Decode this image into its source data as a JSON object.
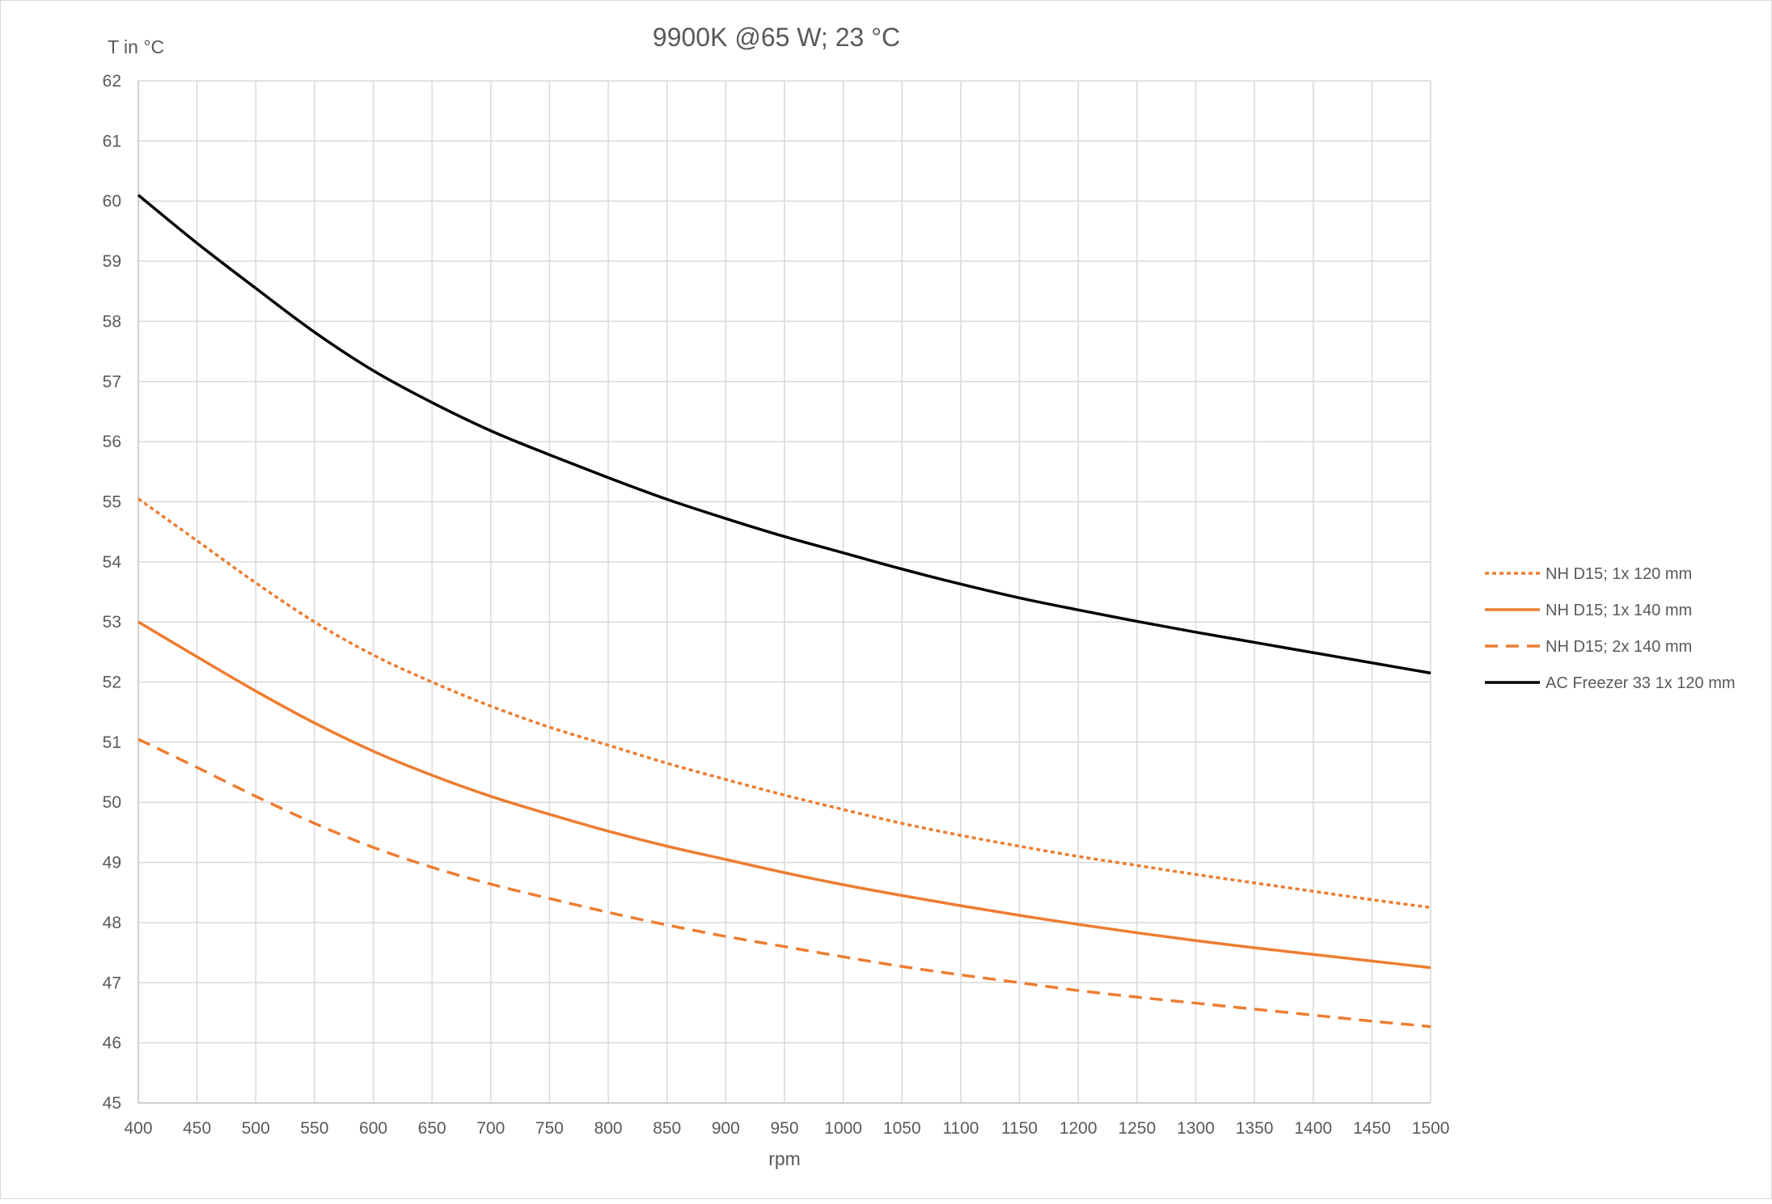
{
  "chart_data": {
    "type": "line",
    "title": "9900K @65 W; 23 °C",
    "xlabel": "rpm",
    "ylabel": "T in °C",
    "xlim": [
      400,
      1500
    ],
    "ylim": [
      45,
      62
    ],
    "x_ticks": [
      400,
      450,
      500,
      550,
      600,
      650,
      700,
      750,
      800,
      850,
      900,
      950,
      1000,
      1050,
      1100,
      1150,
      1200,
      1250,
      1300,
      1350,
      1400,
      1450,
      1500
    ],
    "y_ticks": [
      45,
      46,
      47,
      48,
      49,
      50,
      51,
      52,
      53,
      54,
      55,
      56,
      57,
      58,
      59,
      60,
      61,
      62
    ],
    "grid": true,
    "legend_position": "right",
    "x": [
      400,
      450,
      500,
      550,
      600,
      650,
      700,
      750,
      800,
      850,
      900,
      950,
      1000,
      1050,
      1100,
      1150,
      1200,
      1250,
      1300,
      1350,
      1400,
      1450,
      1500
    ],
    "series": [
      {
        "name": "NH D15; 1x 120 mm",
        "color": "#ED7D31",
        "dash": "dotted",
        "values": [
          55.05,
          54.35,
          53.65,
          53.0,
          52.45,
          52.0,
          51.6,
          51.25,
          50.95,
          50.65,
          50.38,
          50.12,
          49.88,
          49.65,
          49.45,
          49.27,
          49.1,
          48.95,
          48.8,
          48.66,
          48.52,
          48.38,
          48.25
        ]
      },
      {
        "name": "NH D15; 1x 140 mm",
        "color": "#ED7D31",
        "dash": "solid",
        "values": [
          53.0,
          52.42,
          51.85,
          51.32,
          50.85,
          50.45,
          50.1,
          49.8,
          49.52,
          49.27,
          49.05,
          48.83,
          48.63,
          48.45,
          48.28,
          48.12,
          47.97,
          47.83,
          47.7,
          47.58,
          47.47,
          47.36,
          47.25
        ]
      },
      {
        "name": "NH D15; 2x 140 mm",
        "color": "#ED7D31",
        "dash": "dashed",
        "values": [
          51.05,
          50.58,
          50.1,
          49.65,
          49.25,
          48.92,
          48.64,
          48.4,
          48.17,
          47.96,
          47.77,
          47.6,
          47.43,
          47.27,
          47.13,
          47.0,
          46.87,
          46.76,
          46.66,
          46.56,
          46.46,
          46.36,
          46.27
        ]
      },
      {
        "name": "AC Freezer 33 1x 120 mm",
        "color": "#000000",
        "dash": "solid",
        "values": [
          60.1,
          59.3,
          58.55,
          57.82,
          57.18,
          56.65,
          56.18,
          55.78,
          55.4,
          55.04,
          54.72,
          54.42,
          54.15,
          53.88,
          53.63,
          53.4,
          53.2,
          53.01,
          52.83,
          52.66,
          52.49,
          52.32,
          52.15
        ]
      }
    ]
  }
}
